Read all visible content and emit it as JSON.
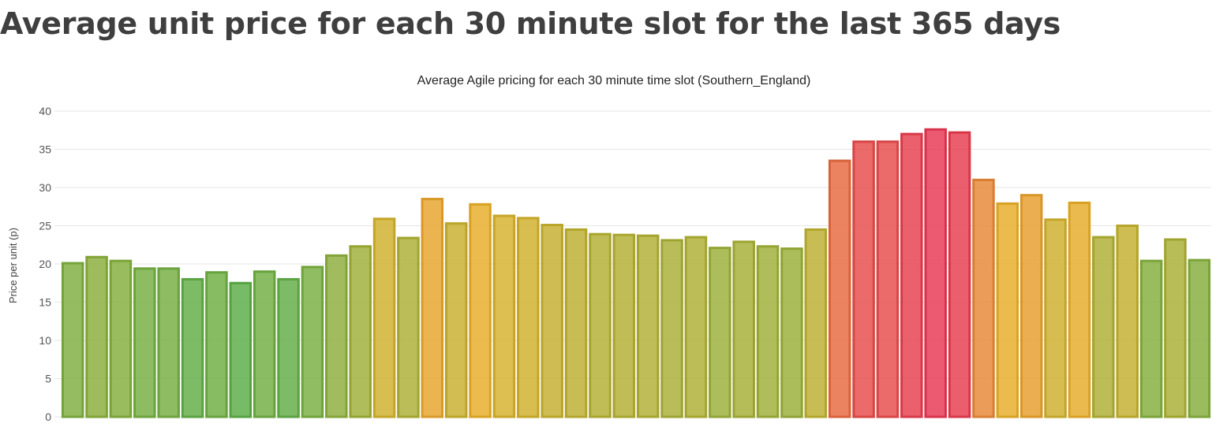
{
  "page": {
    "title": "Average unit price for each 30 minute slot for the last 365 days"
  },
  "chart_data": {
    "type": "bar",
    "title": "Average Agile pricing for each 30 minute time slot (Southern_England)",
    "xlabel": "",
    "ylabel": "Price per unit (p)",
    "ylim": [
      0,
      40
    ],
    "yticks": [
      0,
      5,
      10,
      15,
      20,
      25,
      30,
      35,
      40
    ],
    "grid": true,
    "values": [
      20.1,
      20.9,
      20.4,
      19.4,
      19.4,
      18.0,
      18.9,
      17.5,
      19.0,
      18.0,
      19.6,
      21.1,
      22.3,
      25.9,
      23.4,
      28.5,
      25.3,
      27.8,
      26.3,
      26.0,
      25.1,
      24.5,
      23.9,
      23.8,
      23.7,
      23.1,
      23.5,
      22.1,
      22.9,
      22.3,
      22.0,
      24.5,
      33.5,
      36.0,
      36.0,
      37.0,
      37.6,
      37.2,
      31.0,
      27.9,
      29.0,
      25.8,
      28.0,
      23.5,
      25.0,
      20.4,
      23.2,
      20.5
    ],
    "color_scale": {
      "low": "#5aac46",
      "mid": "#e6b025",
      "high": "#e63650"
    }
  }
}
